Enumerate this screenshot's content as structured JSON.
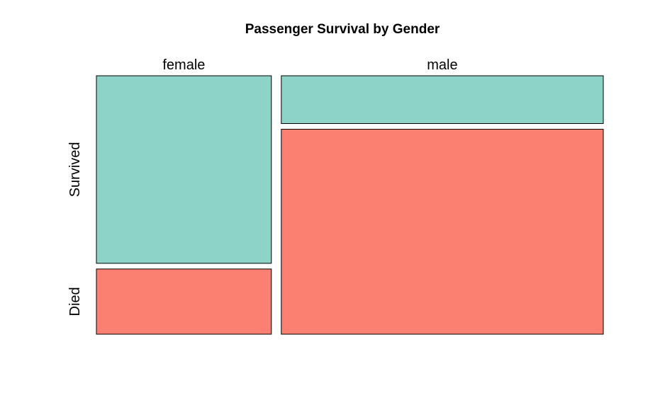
{
  "chart_data": {
    "type": "mosaic",
    "title": "Passenger Survival by Gender",
    "column_variable_levels": [
      "female",
      "male"
    ],
    "row_variable_levels": [
      "Survived",
      "Died"
    ],
    "column_proportions": [
      0.352,
      0.648
    ],
    "cells": [
      {
        "column": "female",
        "row": "Survived",
        "proportion_within_column": 0.742,
        "color": "#8DD3C7"
      },
      {
        "column": "female",
        "row": "Died",
        "proportion_within_column": 0.258,
        "color": "#FB8072"
      },
      {
        "column": "male",
        "row": "Survived",
        "proportion_within_column": 0.189,
        "color": "#8DD3C7"
      },
      {
        "column": "male",
        "row": "Died",
        "proportion_within_column": 0.811,
        "color": "#FB8072"
      }
    ],
    "colors": {
      "Survived": "#8DD3C7",
      "Died": "#FB8072",
      "border": "#000000",
      "background": "#FFFFFF"
    },
    "legend": "none",
    "grid": false
  }
}
